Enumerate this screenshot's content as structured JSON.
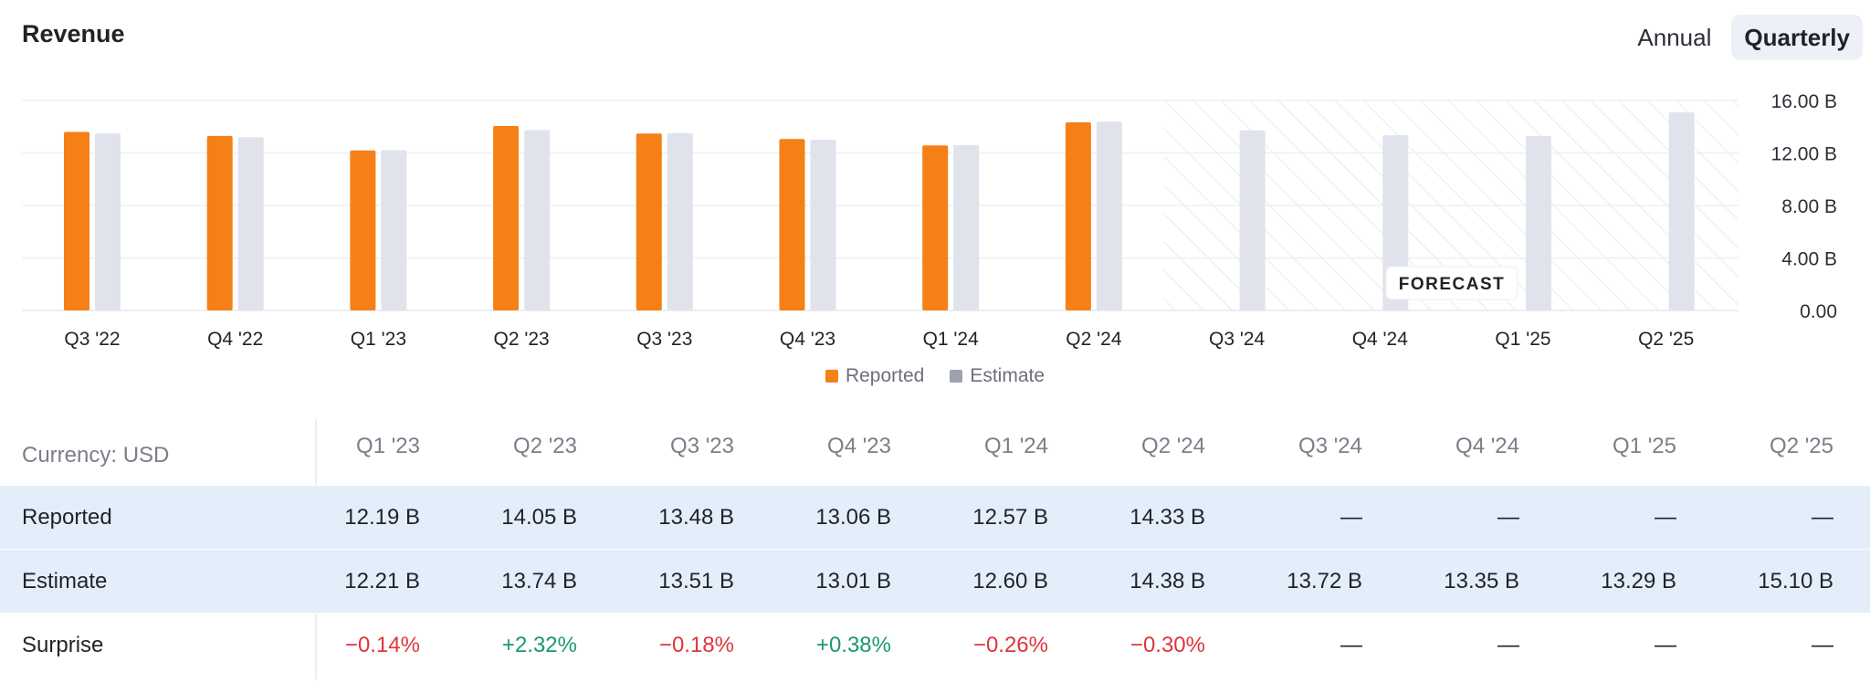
{
  "title": "Revenue",
  "toggle": {
    "annual": "Annual",
    "quarterly": "Quarterly",
    "selected": "Quarterly"
  },
  "colors": {
    "reported": "#f58017",
    "estimate": "#e1e3ec",
    "negative": "#e0343c",
    "positive": "#1a9a68"
  },
  "chart_data": {
    "type": "bar",
    "categories": [
      "Q3 '22",
      "Q4 '22",
      "Q1 '23",
      "Q2 '23",
      "Q3 '23",
      "Q4 '23",
      "Q1 '24",
      "Q2 '24",
      "Q3 '24",
      "Q4 '24",
      "Q1 '25",
      "Q2 '25"
    ],
    "series": [
      {
        "name": "Reported",
        "values": [
          13.6,
          13.3,
          12.19,
          14.05,
          13.48,
          13.06,
          12.57,
          14.33,
          null,
          null,
          null,
          null
        ]
      },
      {
        "name": "Estimate",
        "values": [
          13.5,
          13.2,
          12.21,
          13.74,
          13.51,
          13.01,
          12.6,
          14.38,
          13.72,
          13.35,
          13.29,
          15.1
        ]
      }
    ],
    "yticks": [
      "0.00",
      "4.00 B",
      "8.00 B",
      "12.00 B",
      "16.00 B"
    ],
    "ylim": [
      0,
      16
    ],
    "forecast_label": "FORECAST",
    "forecast_start_index": 8,
    "grid": true
  },
  "table": {
    "currency_label": "Currency: USD",
    "columns": [
      "Q1 '23",
      "Q2 '23",
      "Q3 '23",
      "Q4 '23",
      "Q1 '24",
      "Q2 '24",
      "Q3 '24",
      "Q4 '24",
      "Q1 '25",
      "Q2 '25"
    ],
    "rows": [
      {
        "label": "Reported",
        "values": [
          "12.19 B",
          "14.05 B",
          "13.48 B",
          "13.06 B",
          "12.57 B",
          "14.33 B",
          "—",
          "—",
          "—",
          "—"
        ]
      },
      {
        "label": "Estimate",
        "values": [
          "12.21 B",
          "13.74 B",
          "13.51 B",
          "13.01 B",
          "12.60 B",
          "14.38 B",
          "13.72 B",
          "13.35 B",
          "13.29 B",
          "15.10 B"
        ]
      },
      {
        "label": "Surprise",
        "values": [
          "−0.14%",
          "+2.32%",
          "−0.18%",
          "+0.38%",
          "−0.26%",
          "−0.30%",
          "—",
          "—",
          "—",
          "—"
        ]
      }
    ]
  }
}
